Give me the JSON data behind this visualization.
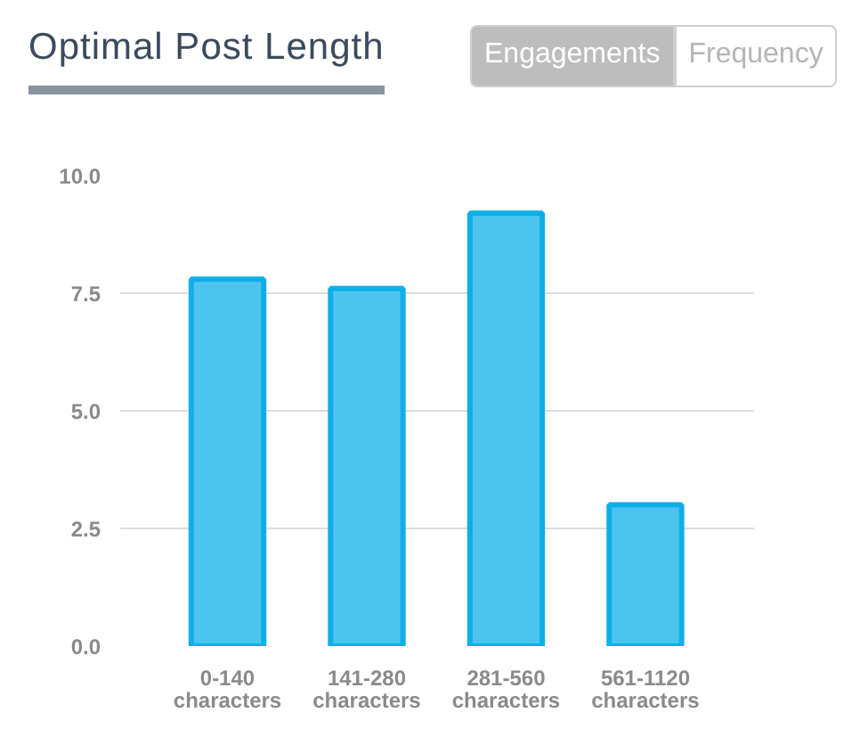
{
  "chart_data": {
    "type": "bar",
    "title": "Optimal Post Length",
    "annotations": [
      "Engagements",
      "Frequency"
    ],
    "categories": [
      "0-140\ncharacters",
      "141-280\ncharacters",
      "281-560\ncharacters",
      "561-1120\ncharacters"
    ],
    "values": [
      7.8,
      7.6,
      9.2,
      3.0
    ],
    "color": "#4dc4f0",
    "ylim": [
      0,
      10
    ],
    "yticks": [
      {
        "value": 0,
        "label": "0.0"
      },
      {
        "value": 2.5,
        "label": "2.5"
      },
      {
        "value": 5,
        "label": "5.0"
      },
      {
        "value": 7.5,
        "label": "7.5"
      },
      {
        "value": 10,
        "label": "10.0"
      }
    ],
    "grid": "y"
  }
}
